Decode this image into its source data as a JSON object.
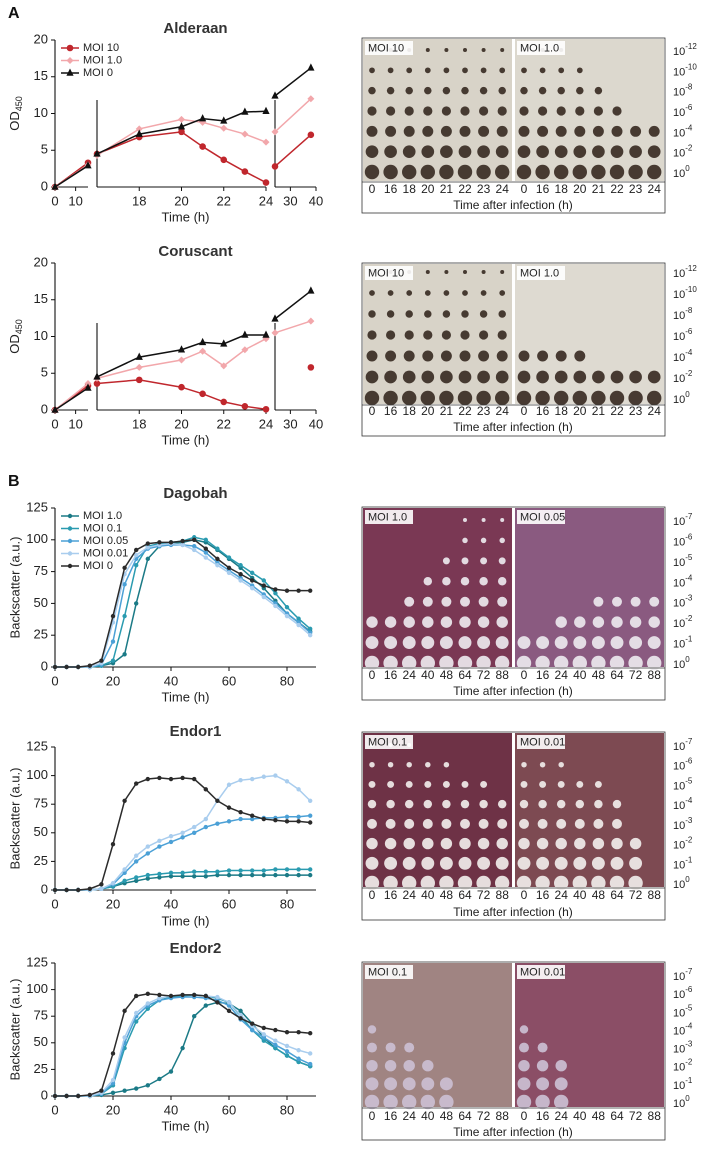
{
  "panels": [
    "A",
    "B"
  ],
  "chart_data": [
    {
      "type": "line",
      "title": "Alderaan",
      "ylabel": {
        "text": "OD",
        "sub": "450"
      },
      "xlabel": "Time (h)",
      "x": [
        0,
        16,
        null,
        16,
        18,
        20,
        21,
        22,
        23,
        24,
        null,
        24,
        38
      ],
      "xsegments": [
        {
          "xlim": [
            0,
            16
          ],
          "xticks": [
            0,
            10
          ]
        },
        {
          "xlim": [
            16,
            24
          ],
          "xticks": [
            18,
            20,
            22,
            24
          ]
        },
        {
          "xlim": [
            24,
            40
          ],
          "xticks": [
            30,
            40
          ]
        }
      ],
      "ylim": [
        0,
        20
      ],
      "yticks": [
        0,
        5,
        10,
        15,
        20
      ],
      "legend": "upper left",
      "series": [
        {
          "name": "MOI 10",
          "color": "#c0272d",
          "marker": "circle",
          "values": [
            0,
            3.3,
            null,
            4.5,
            6.8,
            7.5,
            5.5,
            3.7,
            2.1,
            0.6,
            null,
            2.8,
            7.1
          ]
        },
        {
          "name": "MOI 1.0",
          "color": "#f2a7ab",
          "marker": "diamond",
          "values": [
            0,
            3.0,
            null,
            4.3,
            7.9,
            9.2,
            8.8,
            8.0,
            7.2,
            6.1,
            null,
            7.5,
            12.0
          ]
        },
        {
          "name": "MOI 0",
          "color": "#111111",
          "marker": "triangle",
          "values": [
            0,
            2.9,
            null,
            4.5,
            7.2,
            8.2,
            9.3,
            9.0,
            10.2,
            10.3,
            null,
            12.4,
            16.2
          ]
        }
      ]
    },
    {
      "type": "line",
      "title": "Coruscant",
      "ylabel": {
        "text": "OD",
        "sub": "450"
      },
      "xlabel": "Time (h)",
      "x": [
        0,
        16,
        null,
        16,
        18,
        20,
        21,
        22,
        23,
        24,
        null,
        24,
        38
      ],
      "xsegments": [
        {
          "xlim": [
            0,
            16
          ],
          "xticks": [
            0,
            10
          ]
        },
        {
          "xlim": [
            16,
            24
          ],
          "xticks": [
            18,
            20,
            22,
            24
          ]
        },
        {
          "xlim": [
            24,
            40
          ],
          "xticks": [
            30,
            40
          ]
        }
      ],
      "ylim": [
        0,
        20
      ],
      "yticks": [
        0,
        5,
        10,
        15,
        20
      ],
      "series": [
        {
          "color": "#c0272d",
          "marker": "circle",
          "values": [
            0,
            3.3,
            null,
            3.6,
            4.1,
            3.1,
            2.2,
            1.1,
            0.5,
            0.1,
            null,
            null,
            5.8
          ]
        },
        {
          "color": "#f2a7ab",
          "marker": "diamond",
          "values": [
            0,
            3.6,
            null,
            4.3,
            5.8,
            6.8,
            8.0,
            6.0,
            8.2,
            9.7,
            null,
            10.5,
            12.1
          ]
        },
        {
          "color": "#111111",
          "marker": "triangle",
          "values": [
            0,
            3.0,
            null,
            4.5,
            7.2,
            8.2,
            9.2,
            9.0,
            10.2,
            10.2,
            null,
            12.4,
            16.2
          ]
        }
      ]
    },
    {
      "type": "line",
      "title": "Dagobah",
      "ylabel": "Backscatter (a.u.)",
      "xlabel": "Time (h)",
      "x": [
        0,
        4,
        8,
        12,
        16,
        20,
        24,
        28,
        32,
        36,
        40,
        44,
        48,
        52,
        56,
        60,
        64,
        68,
        72,
        76,
        80,
        84,
        88
      ],
      "xlim": [
        0,
        90
      ],
      "xticks": [
        0,
        20,
        40,
        60,
        80
      ],
      "ylim": [
        0,
        125
      ],
      "yticks": [
        0,
        25,
        50,
        75,
        100,
        125
      ],
      "legend": "upper left",
      "series": [
        {
          "name": "MOI 1.0",
          "color": "#1b7a86",
          "marker": "circle",
          "values": [
            0,
            0,
            0,
            0,
            1,
            3,
            10,
            50,
            85,
            95,
            97,
            98,
            100,
            98,
            92,
            85,
            78,
            70,
            62,
            52,
            42,
            35,
            28
          ]
        },
        {
          "name": "MOI 0.1",
          "color": "#2a9bb0",
          "marker": "circle",
          "values": [
            0,
            0,
            0,
            0,
            1,
            5,
            40,
            80,
            95,
            97,
            98,
            99,
            102,
            100,
            93,
            86,
            80,
            74,
            68,
            58,
            47,
            38,
            30
          ]
        },
        {
          "name": "MOI 0.05",
          "color": "#4ba0d6",
          "marker": "circle",
          "values": [
            0,
            0,
            0,
            0,
            2,
            20,
            65,
            85,
            93,
            95,
            96,
            96,
            95,
            90,
            82,
            76,
            70,
            64,
            57,
            50,
            42,
            35,
            27
          ]
        },
        {
          "name": "MOI 0.01",
          "color": "#a9cdee",
          "marker": "circle",
          "values": [
            0,
            0,
            0,
            0,
            3,
            35,
            73,
            88,
            94,
            96,
            97,
            96,
            92,
            86,
            80,
            74,
            68,
            62,
            55,
            48,
            40,
            33,
            25
          ]
        },
        {
          "name": "MOI 0",
          "color": "#2b2b2b",
          "marker": "circle",
          "values": [
            0,
            0,
            0,
            1,
            5,
            40,
            78,
            92,
            97,
            98,
            98,
            99,
            100,
            93,
            85,
            78,
            73,
            68,
            64,
            61,
            60,
            60,
            60
          ]
        }
      ]
    },
    {
      "type": "line",
      "title": "Endor1",
      "ylabel": "Backscatter (a.u.)",
      "xlabel": "Time (h)",
      "x": [
        0,
        4,
        8,
        12,
        16,
        20,
        24,
        28,
        32,
        36,
        40,
        44,
        48,
        52,
        56,
        60,
        64,
        68,
        72,
        76,
        80,
        84,
        88
      ],
      "xlim": [
        0,
        90
      ],
      "xticks": [
        0,
        20,
        40,
        60,
        80
      ],
      "ylim": [
        0,
        125
      ],
      "yticks": [
        0,
        25,
        50,
        75,
        100,
        125
      ],
      "series": [
        {
          "color": "#1b7a86",
          "marker": "circle",
          "values": [
            0,
            0,
            0,
            0,
            1,
            3,
            6,
            8,
            10,
            11,
            12,
            12,
            12,
            12,
            13,
            13,
            13,
            13,
            13,
            13,
            13,
            13,
            13
          ]
        },
        {
          "color": "#2a9bb0",
          "marker": "circle",
          "values": [
            0,
            0,
            0,
            0,
            1,
            3,
            8,
            11,
            13,
            14,
            15,
            15,
            16,
            16,
            16,
            17,
            17,
            17,
            17,
            18,
            18,
            18,
            18
          ]
        },
        {
          "color": "#4ba0d6",
          "marker": "circle",
          "values": [
            0,
            0,
            0,
            0,
            1,
            5,
            15,
            25,
            32,
            38,
            42,
            46,
            50,
            55,
            58,
            60,
            62,
            62,
            63,
            63,
            64,
            64,
            65
          ]
        },
        {
          "color": "#a9cdee",
          "marker": "circle",
          "values": [
            0,
            0,
            0,
            0,
            1,
            6,
            18,
            30,
            38,
            43,
            47,
            50,
            55,
            62,
            78,
            92,
            96,
            97,
            99,
            100,
            95,
            88,
            78
          ]
        },
        {
          "color": "#2b2b2b",
          "marker": "circle",
          "values": [
            0,
            0,
            0,
            1,
            5,
            40,
            78,
            93,
            97,
            98,
            97,
            98,
            97,
            88,
            78,
            72,
            68,
            65,
            62,
            61,
            60,
            60,
            59
          ]
        }
      ]
    },
    {
      "type": "line",
      "title": "Endor2",
      "ylabel": "Backscatter (a.u.)",
      "xlabel": "Time (h)",
      "x": [
        0,
        4,
        8,
        12,
        16,
        20,
        24,
        28,
        32,
        36,
        40,
        44,
        48,
        52,
        56,
        60,
        64,
        68,
        72,
        76,
        80,
        84,
        88
      ],
      "xlim": [
        0,
        90
      ],
      "xticks": [
        0,
        20,
        40,
        60,
        80
      ],
      "ylim": [
        0,
        125
      ],
      "yticks": [
        0,
        25,
        50,
        75,
        100,
        125
      ],
      "series": [
        {
          "color": "#1b7a86",
          "marker": "circle",
          "values": [
            0,
            0,
            0,
            0,
            1,
            3,
            5,
            7,
            10,
            16,
            23,
            45,
            75,
            85,
            88,
            87,
            80,
            68,
            55,
            45,
            38,
            32,
            28
          ]
        },
        {
          "color": "#2a9bb0",
          "marker": "circle",
          "values": [
            0,
            0,
            0,
            0,
            2,
            10,
            45,
            70,
            82,
            90,
            93,
            94,
            95,
            94,
            92,
            88,
            75,
            62,
            52,
            45,
            38,
            32,
            28
          ]
        },
        {
          "color": "#4ba0d6",
          "marker": "circle",
          "values": [
            0,
            0,
            0,
            0,
            2,
            12,
            50,
            75,
            85,
            90,
            92,
            93,
            93,
            92,
            90,
            85,
            72,
            62,
            55,
            48,
            42,
            35,
            30
          ]
        },
        {
          "color": "#a9cdee",
          "marker": "circle",
          "values": [
            0,
            0,
            0,
            0,
            3,
            15,
            55,
            78,
            87,
            92,
            94,
            95,
            95,
            94,
            93,
            88,
            76,
            66,
            58,
            52,
            47,
            43,
            40
          ]
        },
        {
          "color": "#2b2b2b",
          "marker": "circle",
          "values": [
            0,
            0,
            0,
            1,
            5,
            40,
            80,
            94,
            96,
            95,
            94,
            95,
            95,
            94,
            88,
            80,
            73,
            68,
            64,
            62,
            60,
            60,
            59
          ]
        }
      ]
    }
  ],
  "plates": [
    {
      "halves": [
        {
          "label": "MOI 10",
          "times": [
            0,
            16,
            18,
            20,
            21,
            22,
            23,
            24
          ]
        },
        {
          "label": "MOI 1.0",
          "times": [
            0,
            16,
            18,
            20,
            21,
            22,
            23,
            24
          ]
        }
      ],
      "xlabel": "Time after infection (h)",
      "dilutions": [
        {
          "base": "10",
          "exponent": "-12"
        },
        {
          "base": "10",
          "exponent": "-10"
        },
        {
          "base": "10",
          "exponent": "-8"
        },
        {
          "base": "10",
          "exponent": "-6"
        },
        {
          "base": "10",
          "exponent": "-4"
        },
        {
          "base": "10",
          "exponent": "-2"
        },
        {
          "base": "10",
          "exponent": "0"
        }
      ]
    },
    {
      "halves": [
        {
          "label": "MOI 10",
          "times": [
            0,
            16,
            18,
            20,
            21,
            22,
            23,
            24
          ]
        },
        {
          "label": "MOI 1.0",
          "times": [
            0,
            16,
            18,
            20,
            21,
            22,
            23,
            24
          ]
        }
      ],
      "xlabel": "Time after infection (h)",
      "dilutions": [
        {
          "base": "10",
          "exponent": "-12"
        },
        {
          "base": "10",
          "exponent": "-10"
        },
        {
          "base": "10",
          "exponent": "-8"
        },
        {
          "base": "10",
          "exponent": "-6"
        },
        {
          "base": "10",
          "exponent": "-4"
        },
        {
          "base": "10",
          "exponent": "-2"
        },
        {
          "base": "10",
          "exponent": "0"
        }
      ]
    },
    {
      "halves": [
        {
          "label": "MOI 1.0",
          "times": [
            0,
            16,
            24,
            40,
            48,
            64,
            72,
            88
          ]
        },
        {
          "label": "MOI 0.05",
          "times": [
            0,
            16,
            24,
            40,
            48,
            64,
            72,
            88
          ]
        }
      ],
      "xlabel": "Time after infection (h)",
      "dilutions": [
        {
          "base": "10",
          "exponent": "-7"
        },
        {
          "base": "10",
          "exponent": "-6"
        },
        {
          "base": "10",
          "exponent": "-5"
        },
        {
          "base": "10",
          "exponent": "-4"
        },
        {
          "base": "10",
          "exponent": "-3"
        },
        {
          "base": "10",
          "exponent": "-2"
        },
        {
          "base": "10",
          "exponent": "-1"
        },
        {
          "base": "10",
          "exponent": "0"
        }
      ]
    },
    {
      "halves": [
        {
          "label": "MOI 0.1",
          "times": [
            0,
            16,
            24,
            40,
            48,
            64,
            72,
            88
          ]
        },
        {
          "label": "MOI 0.01",
          "times": [
            0,
            16,
            24,
            40,
            48,
            64,
            72,
            88
          ]
        }
      ],
      "xlabel": "Time after infection (h)",
      "dilutions": [
        {
          "base": "10",
          "exponent": "-7"
        },
        {
          "base": "10",
          "exponent": "-6"
        },
        {
          "base": "10",
          "exponent": "-5"
        },
        {
          "base": "10",
          "exponent": "-4"
        },
        {
          "base": "10",
          "exponent": "-3"
        },
        {
          "base": "10",
          "exponent": "-2"
        },
        {
          "base": "10",
          "exponent": "-1"
        },
        {
          "base": "10",
          "exponent": "0"
        }
      ]
    },
    {
      "halves": [
        {
          "label": "MOI 0.1",
          "times": [
            0,
            16,
            24,
            40,
            48,
            64,
            72,
            88
          ]
        },
        {
          "label": "MOI 0.01",
          "times": [
            0,
            16,
            24,
            40,
            48,
            64,
            72,
            88
          ]
        }
      ],
      "xlabel": "Time after infection (h)",
      "dilutions": [
        {
          "base": "10",
          "exponent": "-7"
        },
        {
          "base": "10",
          "exponent": "-6"
        },
        {
          "base": "10",
          "exponent": "-5"
        },
        {
          "base": "10",
          "exponent": "-4"
        },
        {
          "base": "10",
          "exponent": "-3"
        },
        {
          "base": "10",
          "exponent": "-2"
        },
        {
          "base": "10",
          "exponent": "-1"
        },
        {
          "base": "10",
          "exponent": "0"
        }
      ]
    }
  ]
}
